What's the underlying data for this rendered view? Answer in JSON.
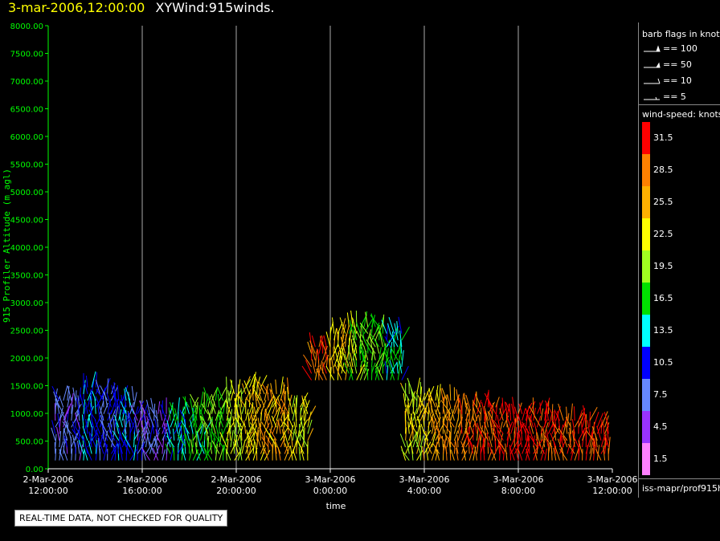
{
  "title": {
    "time": "3-mar-2006,12:00:00",
    "name": "XYWind:915winds."
  },
  "chart_data": {
    "type": "scatter",
    "ylabel": "915 Profiler Altitude (m agl)",
    "xlabel": "time",
    "ylim": [
      0,
      8000
    ],
    "yticks": [
      "0.00",
      "500.00",
      "1000.00",
      "1500.00",
      "2000.00",
      "2500.00",
      "3000.00",
      "3500.00",
      "4000.00",
      "4500.00",
      "5000.00",
      "5500.00",
      "6000.00",
      "6500.00",
      "7000.00",
      "7500.00",
      "8000.00"
    ],
    "xticks": [
      {
        "date": "2-Mar-2006",
        "time": "12:00:00"
      },
      {
        "date": "2-Mar-2006",
        "time": "16:00:00"
      },
      {
        "date": "2-Mar-2006",
        "time": "20:00:00"
      },
      {
        "date": "3-Mar-2006",
        "time": "0:00:00"
      },
      {
        "date": "3-Mar-2006",
        "time": "4:00:00"
      },
      {
        "date": "3-Mar-2006",
        "time": "8:00:00"
      },
      {
        "date": "3-Mar-2006",
        "time": "12:00:00"
      }
    ],
    "xlim_hours": [
      0,
      24
    ],
    "grid": "vertical",
    "series": [
      {
        "x_hours": [
          0.3,
          1.5,
          2.2,
          3.0,
          3.8,
          5.2,
          6.0,
          6.8,
          7.6,
          8.4,
          9.2,
          10.4,
          11.2,
          12.0,
          12.8,
          13.6,
          14.4,
          15.2,
          16.0,
          16.8,
          17.6,
          18.4,
          19.2,
          20.0,
          20.8,
          21.6,
          22.4,
          23.2
        ],
        "altitude_m": [
          1300,
          1500,
          1400,
          1250,
          1100,
          1050,
          1150,
          1300,
          1400,
          1500,
          1450,
          1200,
          2300,
          2450,
          2600,
          2650,
          2500,
          1400,
          1300,
          1250,
          1200,
          1150,
          1100,
          1050,
          1000,
          950,
          900,
          850
        ],
        "speed_knots": [
          8,
          12,
          9,
          11,
          7,
          14,
          16,
          18,
          21,
          24,
          26,
          22,
          29,
          24,
          20,
          18,
          14,
          22,
          25,
          27,
          29,
          30,
          31,
          32,
          31,
          30,
          31,
          30
        ]
      }
    ]
  },
  "legend": {
    "barb_title": "barb flags in knots",
    "barb_items": [
      "== 100",
      "== 50",
      "== 10",
      "== 5"
    ],
    "speed_title": "wind-speed: knots",
    "speed_levels": [
      {
        "label": "31.5",
        "color": "#ff0000"
      },
      {
        "label": "28.5",
        "color": "#ff8000"
      },
      {
        "label": "25.5",
        "color": "#ffb000"
      },
      {
        "label": "22.5",
        "color": "#ffff00"
      },
      {
        "label": "19.5",
        "color": "#a0ff20"
      },
      {
        "label": "16.5",
        "color": "#00e000"
      },
      {
        "label": "13.5",
        "color": "#00ffff"
      },
      {
        "label": "10.5",
        "color": "#0000ff"
      },
      {
        "label": "7.5",
        "color": "#6688ff"
      },
      {
        "label": "4.5",
        "color": "#9933ff"
      },
      {
        "label": "1.5",
        "color": "#ff80ff"
      }
    ],
    "source": "iss-mapr/prof915h"
  },
  "qc_notice": "REAL-TIME DATA, NOT CHECKED FOR QUALITY",
  "colors": {
    "axis": "#00ff00",
    "grid": "#aaaaaa",
    "title_time": "#ffff00"
  }
}
